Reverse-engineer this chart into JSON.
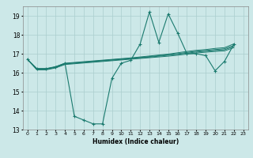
{
  "xlabel": "Humidex (Indice chaleur)",
  "ylabel": "",
  "x": [
    0,
    1,
    2,
    3,
    4,
    5,
    6,
    7,
    8,
    9,
    10,
    11,
    12,
    13,
    14,
    15,
    16,
    17,
    18,
    19,
    20,
    21,
    22,
    23
  ],
  "main_line": [
    16.7,
    16.2,
    16.2,
    16.3,
    16.5,
    13.7,
    13.5,
    13.3,
    13.3,
    15.7,
    16.5,
    16.65,
    17.5,
    19.2,
    17.6,
    19.1,
    18.1,
    17.0,
    17.0,
    16.9,
    16.1,
    16.6,
    17.5,
    null
  ],
  "band_top": [
    16.7,
    16.22,
    16.22,
    16.32,
    16.5,
    16.54,
    16.58,
    16.62,
    16.66,
    16.7,
    16.74,
    16.78,
    16.83,
    16.88,
    16.93,
    16.98,
    17.05,
    17.12,
    17.18,
    17.22,
    17.28,
    17.32,
    17.52,
    null
  ],
  "band_mid1": [
    16.7,
    16.2,
    16.2,
    16.3,
    16.48,
    16.52,
    16.56,
    16.6,
    16.64,
    16.68,
    16.72,
    16.76,
    16.8,
    16.85,
    16.9,
    16.95,
    17.0,
    17.07,
    17.13,
    17.17,
    17.22,
    17.26,
    17.44,
    null
  ],
  "band_mid2": [
    16.7,
    16.18,
    16.18,
    16.28,
    16.46,
    16.5,
    16.54,
    16.58,
    16.62,
    16.66,
    16.7,
    16.74,
    16.78,
    16.82,
    16.87,
    16.92,
    16.97,
    17.03,
    17.09,
    17.13,
    17.17,
    17.21,
    17.38,
    null
  ],
  "band_bot": [
    16.7,
    16.15,
    16.15,
    16.25,
    16.43,
    16.47,
    16.51,
    16.55,
    16.59,
    16.63,
    16.67,
    16.71,
    16.75,
    16.79,
    16.83,
    16.87,
    16.92,
    16.98,
    17.04,
    17.08,
    17.12,
    17.15,
    17.32,
    null
  ],
  "ylim": [
    13,
    19.5
  ],
  "yticks": [
    13,
    14,
    15,
    16,
    17,
    18,
    19
  ],
  "xticks": [
    0,
    1,
    2,
    3,
    4,
    5,
    6,
    7,
    8,
    9,
    10,
    11,
    12,
    13,
    14,
    15,
    16,
    17,
    18,
    19,
    20,
    21,
    22,
    23
  ],
  "line_color": "#1a7a6e",
  "bg_color": "#cce8e8",
  "grid_color": "#aacece",
  "text_color": "#000000"
}
